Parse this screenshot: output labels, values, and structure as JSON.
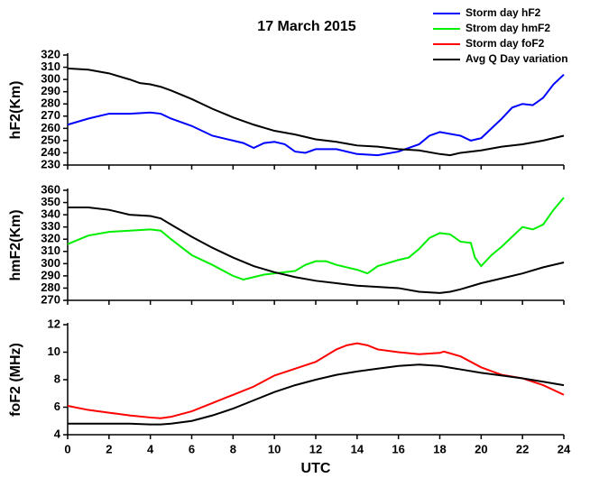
{
  "chart_data": [
    {
      "type": "line",
      "title": "17 March 2015",
      "ylabel": "hF2(Km)",
      "xlim": [
        0,
        24
      ],
      "xticks": [
        0,
        2,
        4,
        6,
        8,
        10,
        12,
        14,
        16,
        18,
        20,
        22,
        24
      ],
      "ylim": [
        230,
        320
      ],
      "yticks": [
        230,
        240,
        250,
        260,
        270,
        280,
        290,
        300,
        310,
        320
      ],
      "series": [
        {
          "name": "Storm day hF2",
          "color": "#0000ff",
          "x": [
            0,
            1,
            2,
            3,
            4,
            4.5,
            5,
            6,
            7,
            8,
            8.5,
            9,
            9.5,
            10,
            10.5,
            11,
            11.5,
            12,
            13,
            14,
            15,
            16,
            17,
            17.5,
            18,
            19,
            19.5,
            20,
            21,
            21.5,
            22,
            22.5,
            23,
            23.5,
            24
          ],
          "values": [
            263,
            268,
            272,
            272,
            273,
            272,
            268,
            262,
            254,
            250,
            248,
            244,
            248,
            249,
            247,
            241,
            240,
            243,
            243,
            239,
            238,
            241,
            247,
            254,
            257,
            254,
            250,
            252,
            268,
            277,
            280,
            279,
            285,
            296,
            304
          ]
        },
        {
          "name": "Avg Q Day variation",
          "color": "#000000",
          "x": [
            0,
            1,
            2,
            3,
            3.5,
            4,
            4.5,
            5,
            6,
            7,
            8,
            9,
            10,
            11,
            12,
            13,
            14,
            15,
            16,
            17,
            18,
            18.5,
            19,
            20,
            21,
            22,
            23,
            24
          ],
          "values": [
            309,
            308,
            305,
            300,
            297,
            296,
            294,
            291,
            284,
            276,
            269,
            263,
            258,
            255,
            251,
            249,
            246,
            245,
            243,
            242,
            239,
            238,
            240,
            242,
            245,
            247,
            250,
            254
          ]
        }
      ]
    },
    {
      "type": "line",
      "ylabel": "hmF2(Km)",
      "xlim": [
        0,
        24
      ],
      "xticks": [
        0,
        2,
        4,
        6,
        8,
        10,
        12,
        14,
        16,
        18,
        20,
        22,
        24
      ],
      "ylim": [
        270,
        360
      ],
      "yticks": [
        270,
        280,
        290,
        300,
        310,
        320,
        330,
        340,
        350,
        360
      ],
      "series": [
        {
          "name": "Strom day hmF2",
          "color": "#00ee00",
          "x": [
            0,
            1,
            2,
            3,
            4,
            4.5,
            5,
            6,
            7,
            8,
            8.5,
            9,
            9.5,
            10,
            11,
            11.5,
            12,
            12.5,
            13,
            14,
            14.5,
            15,
            16,
            16.5,
            17,
            17.5,
            18,
            18.5,
            19,
            19.5,
            19.7,
            20,
            20.5,
            21,
            21.5,
            22,
            22.5,
            23,
            23.5,
            24
          ],
          "values": [
            316,
            323,
            326,
            327,
            328,
            327,
            320,
            307,
            299,
            290,
            287,
            289,
            291,
            292,
            294,
            299,
            302,
            302,
            299,
            295,
            292,
            298,
            303,
            305,
            312,
            321,
            325,
            324,
            318,
            317,
            305,
            298,
            307,
            314,
            322,
            330,
            328,
            332,
            344,
            354
          ]
        },
        {
          "color": "#000000",
          "x": [
            0,
            1,
            2,
            3,
            4,
            4.5,
            5,
            6,
            7,
            8,
            9,
            10,
            11,
            12,
            13,
            14,
            15,
            16,
            17,
            18,
            18.5,
            19,
            20,
            21,
            22,
            23,
            24
          ],
          "values": [
            346,
            346,
            344,
            340,
            339,
            337,
            332,
            322,
            313,
            305,
            298,
            293,
            289,
            286,
            284,
            282,
            281,
            280,
            277,
            276,
            277,
            279,
            284,
            288,
            292,
            297,
            301
          ]
        }
      ]
    },
    {
      "type": "line",
      "ylabel": "foF2 (MHz)",
      "xlabel": "UTC",
      "xlim": [
        0,
        24
      ],
      "xticks": [
        0,
        2,
        4,
        6,
        8,
        10,
        12,
        14,
        16,
        18,
        20,
        22,
        24
      ],
      "ylim": [
        4,
        12
      ],
      "yticks": [
        4,
        6,
        8,
        10,
        12
      ],
      "series": [
        {
          "name": "Storm day foF2",
          "color": "#ff0000",
          "x": [
            0,
            1,
            2,
            3,
            4,
            4.5,
            5,
            6,
            7,
            8,
            9,
            10,
            11,
            12,
            13,
            13.5,
            14,
            14.5,
            15,
            16,
            17,
            18,
            18.2,
            19,
            20,
            21,
            22,
            23,
            24
          ],
          "values": [
            6.1,
            5.8,
            5.6,
            5.4,
            5.25,
            5.2,
            5.3,
            5.7,
            6.3,
            6.9,
            7.5,
            8.3,
            8.8,
            9.3,
            10.2,
            10.5,
            10.65,
            10.5,
            10.2,
            10.0,
            9.85,
            9.95,
            10.05,
            9.7,
            8.9,
            8.35,
            8.1,
            7.6,
            6.9
          ]
        },
        {
          "color": "#000000",
          "x": [
            0,
            1,
            2,
            3,
            4,
            4.5,
            5,
            6,
            7,
            8,
            9,
            10,
            11,
            12,
            13,
            14,
            15,
            16,
            17,
            18,
            19,
            20,
            21,
            22,
            23,
            24
          ],
          "values": [
            4.8,
            4.8,
            4.8,
            4.8,
            4.75,
            4.75,
            4.8,
            5.0,
            5.4,
            5.9,
            6.5,
            7.1,
            7.6,
            8.0,
            8.35,
            8.6,
            8.8,
            9.0,
            9.1,
            9.0,
            8.75,
            8.5,
            8.3,
            8.1,
            7.85,
            7.6
          ]
        }
      ]
    }
  ]
}
